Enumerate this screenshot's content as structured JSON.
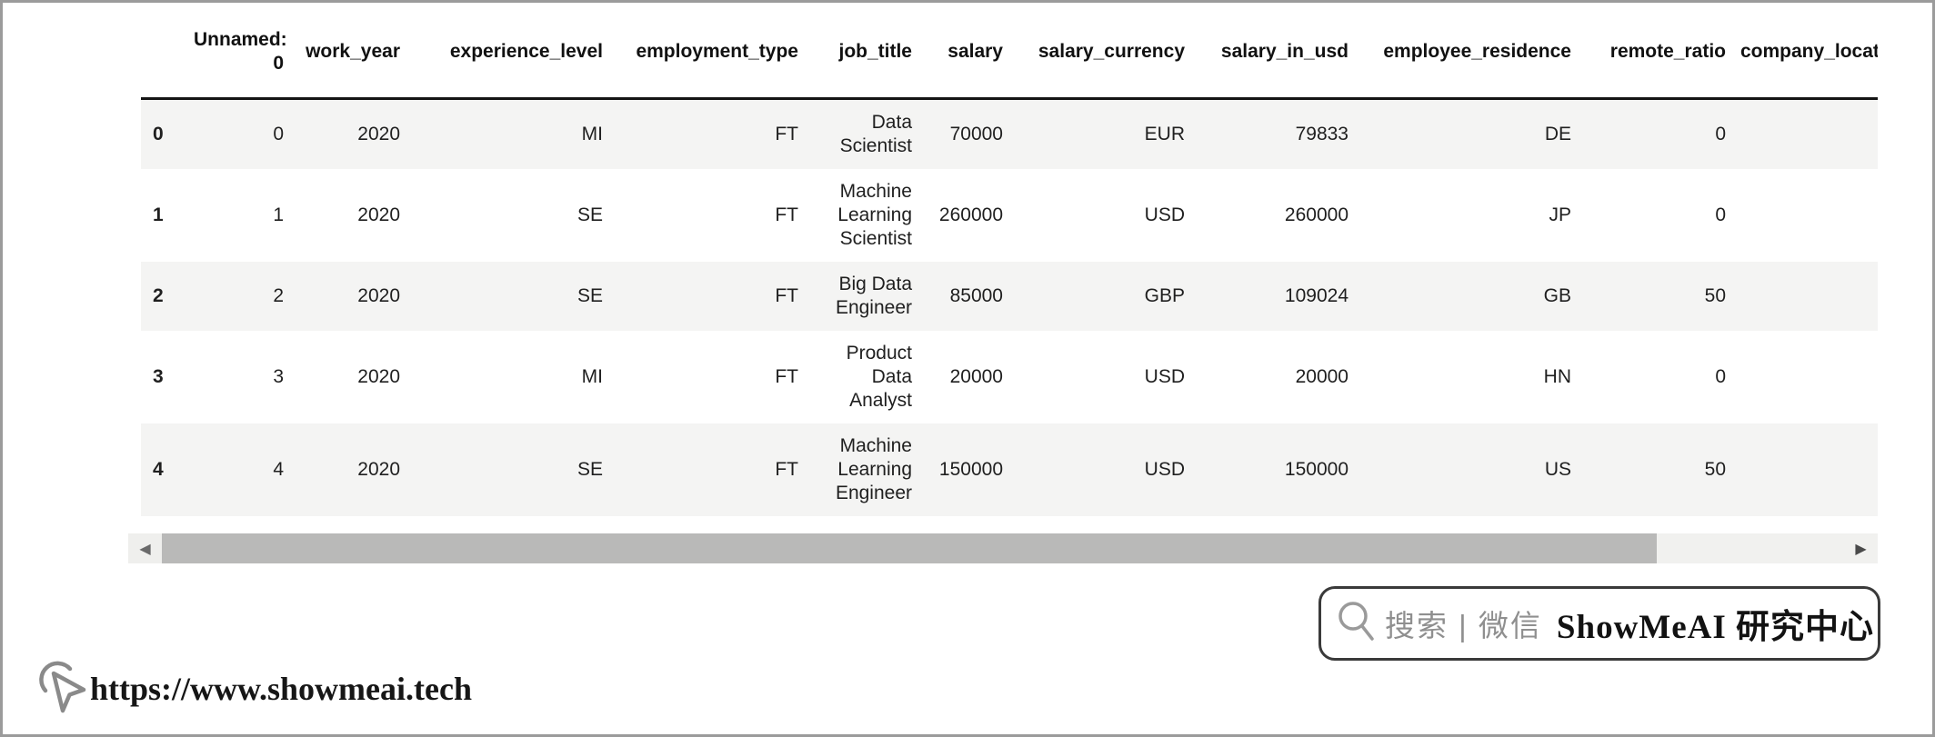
{
  "table": {
    "index_header": "",
    "columns": [
      "Unnamed: 0",
      "work_year",
      "experience_level",
      "employment_type",
      "job_title",
      "salary",
      "salary_currency",
      "salary_in_usd",
      "employee_residence",
      "remote_ratio",
      "company_location"
    ],
    "rows": [
      {
        "index": "0",
        "cells": [
          "0",
          "2020",
          "MI",
          "FT",
          "Data Scientist",
          "70000",
          "EUR",
          "79833",
          "DE",
          "0",
          ""
        ]
      },
      {
        "index": "1",
        "cells": [
          "1",
          "2020",
          "SE",
          "FT",
          "Machine Learning Scientist",
          "260000",
          "USD",
          "260000",
          "JP",
          "0",
          ""
        ]
      },
      {
        "index": "2",
        "cells": [
          "2",
          "2020",
          "SE",
          "FT",
          "Big Data Engineer",
          "85000",
          "GBP",
          "109024",
          "GB",
          "50",
          ""
        ]
      },
      {
        "index": "3",
        "cells": [
          "3",
          "2020",
          "MI",
          "FT",
          "Product Data Analyst",
          "20000",
          "USD",
          "20000",
          "HN",
          "0",
          ""
        ]
      },
      {
        "index": "4",
        "cells": [
          "4",
          "2020",
          "SE",
          "FT",
          "Machine Learning Engineer",
          "150000",
          "USD",
          "150000",
          "US",
          "50",
          ""
        ]
      }
    ]
  },
  "scrollbar": {
    "left_arrow": "◀",
    "right_arrow": "▶"
  },
  "watermark": {
    "search_label": "搜索 | 微信",
    "brand": "ShowMeAI 研究中心"
  },
  "footer": {
    "url": "https://www.showmeai.tech"
  },
  "icons": {
    "search": "magnifier-icon",
    "cursor": "mouse-pointer-icon",
    "scroll_left": "left-triangle-icon",
    "scroll_right": "right-triangle-icon"
  },
  "colors": {
    "row_stripe": "#f4f4f3",
    "header_underline": "#141414",
    "scroll_track": "#f1f1ef",
    "scroll_thumb": "#b9b9b8",
    "scroll_arrow": "#6a6a6a",
    "watermark_border": "#3a3a3a",
    "watermark_gray_text": "#8f8f8f",
    "icon_gray": "#8a8a8a",
    "page_border": "#9b9b9b"
  }
}
